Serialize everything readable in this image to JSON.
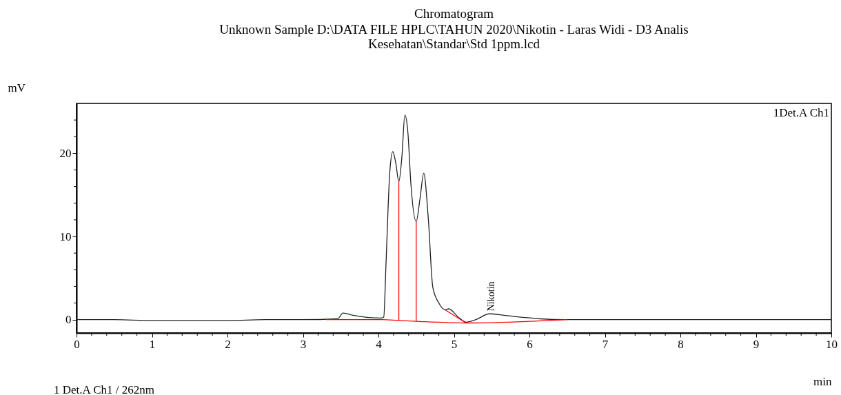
{
  "chart_data": {
    "type": "line",
    "title": "Chromatogram",
    "subtitle": "Unknown Sample D:\\DATA FILE HPLC\\TAHUN 2020\\Nikotin - Laras Widi - D3 Analis Kesehatan\\Standar\\Std 1ppm.lcd",
    "xlabel": "min",
    "ylabel": "mV",
    "series": [
      {
        "color": "#222222",
        "x": [
          0,
          0.5,
          1,
          1.5,
          2,
          2.5,
          3,
          3.46,
          3.53,
          3.65,
          4.04,
          4.07,
          4.1,
          4.15,
          4.19,
          4.23,
          4.27,
          4.31,
          4.35,
          4.39,
          4.43,
          4.5,
          4.55,
          4.6,
          4.66,
          4.72,
          4.8,
          4.88,
          4.93,
          5.07,
          5.16,
          5.29,
          5.47,
          5.68,
          6.14,
          6.5,
          7,
          8,
          9,
          10
        ],
        "values": [
          0.0,
          0.0,
          -0.1,
          -0.1,
          -0.1,
          0.0,
          0.0,
          0.1,
          0.8,
          0.55,
          0.2,
          0.3,
          6.7,
          17.7,
          20.2,
          18.8,
          16.6,
          19.5,
          24.6,
          22.5,
          16.3,
          11.8,
          14.5,
          17.6,
          12.2,
          3.9,
          2.0,
          1.2,
          1.3,
          0.2,
          -0.3,
          0.0,
          0.7,
          0.5,
          0.1,
          0.0,
          0.0,
          0.0,
          0.0,
          0.0
        ]
      },
      {
        "color": "#ff0000",
        "x": [
          3.3,
          4.05,
          4.27,
          4.5,
          5.16,
          6.5
        ],
        "values": [
          0.0,
          0.0,
          -0.1,
          -0.2,
          -0.4,
          0.0
        ]
      },
      {
        "color": "#ff0000",
        "x": [
          4.27,
          4.27
        ],
        "values": [
          -0.1,
          16.6
        ]
      },
      {
        "color": "#ff0000",
        "x": [
          4.5,
          4.5
        ],
        "values": [
          -0.2,
          11.8
        ]
      },
      {
        "color": "#ff0000",
        "x": [
          4.88,
          5.16
        ],
        "values": [
          1.2,
          -0.4
        ]
      }
    ],
    "xlim": [
      0,
      10
    ],
    "ylim": [
      -1.6,
      26
    ],
    "xticks": [
      0,
      {
        "value": 0.2,
        "label": null
      },
      {
        "value": 0.4,
        "label": null
      },
      {
        "value": 0.6,
        "label": null
      },
      {
        "value": 0.8,
        "label": null
      },
      1,
      {
        "value": 1.2,
        "label": null
      },
      {
        "value": 1.4,
        "label": null
      },
      {
        "value": 1.6,
        "label": null
      },
      {
        "value": 1.8,
        "label": null
      },
      2,
      {
        "value": 2.2,
        "label": null
      },
      {
        "value": 2.4,
        "label": null
      },
      {
        "value": 2.6,
        "label": null
      },
      {
        "value": 2.8,
        "label": null
      },
      3,
      {
        "value": 3.2,
        "label": null
      },
      {
        "value": 3.4,
        "label": null
      },
      {
        "value": 3.6,
        "label": null
      },
      {
        "value": 3.8,
        "label": null
      },
      4,
      {
        "value": 4.2,
        "label": null
      },
      {
        "value": 4.4,
        "label": null
      },
      {
        "value": 4.6,
        "label": null
      },
      {
        "value": 4.8,
        "label": null
      },
      5,
      {
        "value": 5.2,
        "label": null
      },
      {
        "value": 5.4,
        "label": null
      },
      {
        "value": 5.6,
        "label": null
      },
      {
        "value": 5.8,
        "label": null
      },
      6,
      {
        "value": 6.2,
        "label": null
      },
      {
        "value": 6.4,
        "label": null
      },
      {
        "value": 6.6,
        "label": null
      },
      {
        "value": 6.8,
        "label": null
      },
      7,
      {
        "value": 7.2,
        "label": null
      },
      {
        "value": 7.4,
        "label": null
      },
      {
        "value": 7.6,
        "label": null
      },
      {
        "value": 7.8,
        "label": null
      },
      8,
      {
        "value": 8.2,
        "label": null
      },
      {
        "value": 8.4,
        "label": null
      },
      {
        "value": 8.6,
        "label": null
      },
      {
        "value": 8.8,
        "label": null
      },
      9,
      {
        "value": 9.2,
        "label": null
      },
      {
        "value": 9.4,
        "label": null
      },
      {
        "value": 9.6,
        "label": null
      },
      {
        "value": 9.8,
        "label": null
      },
      10
    ],
    "yticks": [
      0,
      {
        "value": 2,
        "label": null
      },
      {
        "value": 4,
        "label": null
      },
      {
        "value": 6,
        "label": null
      },
      {
        "value": 8,
        "label": null
      },
      10,
      {
        "value": 12,
        "label": null
      },
      {
        "value": 14,
        "label": null
      },
      {
        "value": 16,
        "label": null
      },
      {
        "value": 18,
        "label": null
      },
      20,
      {
        "value": 22,
        "label": null
      },
      {
        "value": 24,
        "label": null
      }
    ],
    "grid": false,
    "marker": "none",
    "line_style": "solid",
    "annotations": [
      {
        "text": "Nikotin",
        "x": 5.5,
        "y": 0.7
      },
      "1Det.A Ch1",
      "1 Det.A Ch1 / 262nm"
    ]
  }
}
